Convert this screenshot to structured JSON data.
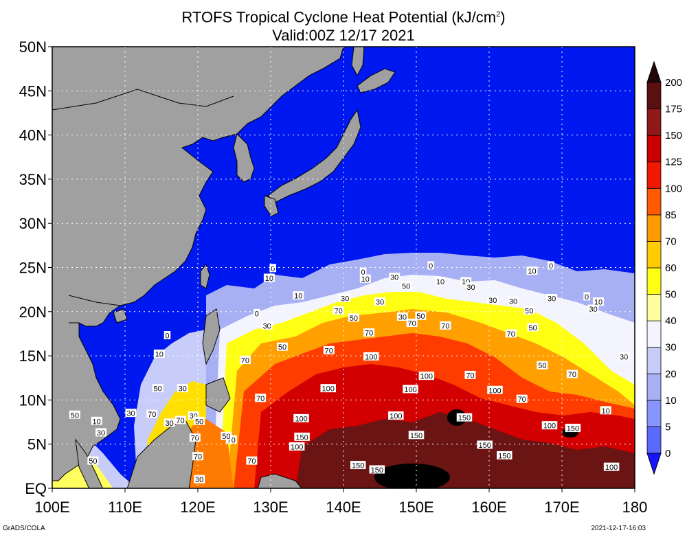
{
  "title": {
    "line1_prefix": "RTOFS Tropical Cyclone Heat Potential (kJ/cm",
    "line1_sup": "2",
    "line1_suffix": ")",
    "line2": "Valid:00Z 12/17 2021"
  },
  "footer": {
    "left": "GrADS/COLA",
    "right": "2021-12-17-16:03"
  },
  "map": {
    "lon_range": [
      100,
      180
    ],
    "lat_range": [
      0,
      50
    ],
    "x_ticks": [
      "100E",
      "110E",
      "120E",
      "130E",
      "140E",
      "150E",
      "160E",
      "170E",
      "180"
    ],
    "y_ticks": [
      "EQ",
      "5N",
      "10N",
      "15N",
      "20N",
      "25N",
      "30N",
      "35N",
      "40N",
      "45N",
      "50N"
    ],
    "gridlines": "dotted",
    "land_color": "#a0a0a0",
    "ocean_low_color": "#0018f0"
  },
  "colorbar": {
    "levels": [
      "0",
      "5",
      "10",
      "20",
      "30",
      "40",
      "50",
      "60",
      "70",
      "85",
      "100",
      "125",
      "150",
      "175",
      "200"
    ],
    "colors": [
      "#1414ff",
      "#5a6aff",
      "#8a96ff",
      "#a8b0f4",
      "#c8ccf8",
      "#f4f4ff",
      "#ffffa0",
      "#ffff14",
      "#ffcc00",
      "#ff9a00",
      "#ff5a00",
      "#f01800",
      "#c80000",
      "#901818",
      "#5a1010",
      "#200808"
    ]
  },
  "contour_labels": [
    {
      "text": "0",
      "lon": 130.3,
      "lat": 24.9
    },
    {
      "text": "10",
      "lon": 129.8,
      "lat": 23.8
    },
    {
      "text": "10",
      "lon": 133.8,
      "lat": 21.8
    },
    {
      "text": "0",
      "lon": 142.7,
      "lat": 24.5
    },
    {
      "text": "10",
      "lon": 143,
      "lat": 23.7
    },
    {
      "text": "30",
      "lon": 147,
      "lat": 23.9
    },
    {
      "text": "50",
      "lon": 148.6,
      "lat": 22.9
    },
    {
      "text": "0",
      "lon": 152,
      "lat": 25.2
    },
    {
      "text": "10",
      "lon": 153.3,
      "lat": 23.4
    },
    {
      "text": "10",
      "lon": 156.8,
      "lat": 23.4
    },
    {
      "text": "30",
      "lon": 157.5,
      "lat": 22.8
    },
    {
      "text": "10",
      "lon": 165.9,
      "lat": 24.6
    },
    {
      "text": "0",
      "lon": 168.5,
      "lat": 25.2
    },
    {
      "text": "30",
      "lon": 140.2,
      "lat": 21.5
    },
    {
      "text": "70",
      "lon": 139.3,
      "lat": 20.1
    },
    {
      "text": "50",
      "lon": 141.4,
      "lat": 19.3
    },
    {
      "text": "30",
      "lon": 145,
      "lat": 21.1
    },
    {
      "text": "50",
      "lon": 150.6,
      "lat": 19.5
    },
    {
      "text": "30",
      "lon": 148.1,
      "lat": 19.4
    },
    {
      "text": "70",
      "lon": 149.4,
      "lat": 18.7
    },
    {
      "text": "70",
      "lon": 154,
      "lat": 18.4
    },
    {
      "text": "30",
      "lon": 160.5,
      "lat": 21.3
    },
    {
      "text": "30",
      "lon": 163.3,
      "lat": 21.2
    },
    {
      "text": "50",
      "lon": 165.5,
      "lat": 20.1
    },
    {
      "text": "30",
      "lon": 168.6,
      "lat": 21.5
    },
    {
      "text": "0",
      "lon": 173.4,
      "lat": 21.7
    },
    {
      "text": "10",
      "lon": 175,
      "lat": 21.1
    },
    {
      "text": "30",
      "lon": 174.3,
      "lat": 20.3
    },
    {
      "text": "50",
      "lon": 166,
      "lat": 18.2
    },
    {
      "text": "70",
      "lon": 163,
      "lat": 17.5
    },
    {
      "text": "70",
      "lon": 143.5,
      "lat": 17.6
    },
    {
      "text": "100",
      "lon": 143.8,
      "lat": 14.9
    },
    {
      "text": "70",
      "lon": 138,
      "lat": 15.6
    },
    {
      "text": "50",
      "lon": 131.6,
      "lat": 16
    },
    {
      "text": "70",
      "lon": 126.5,
      "lat": 14.5
    },
    {
      "text": "30",
      "lon": 129.5,
      "lat": 18.4
    },
    {
      "text": "0",
      "lon": 128.1,
      "lat": 19.8
    },
    {
      "text": "0",
      "lon": 115.8,
      "lat": 17.3
    },
    {
      "text": "10",
      "lon": 114.7,
      "lat": 15.2
    },
    {
      "text": "50",
      "lon": 114.5,
      "lat": 11.3
    },
    {
      "text": "30",
      "lon": 117.9,
      "lat": 11.3
    },
    {
      "text": "70",
      "lon": 117.6,
      "lat": 7.7
    },
    {
      "text": "30",
      "lon": 119.4,
      "lat": 8.2
    },
    {
      "text": "50",
      "lon": 120.2,
      "lat": 7.6
    },
    {
      "text": "70",
      "lon": 128.6,
      "lat": 10.2
    },
    {
      "text": "100",
      "lon": 137.9,
      "lat": 11.3
    },
    {
      "text": "100",
      "lon": 149.2,
      "lat": 11.2
    },
    {
      "text": "100",
      "lon": 151.4,
      "lat": 12.7
    },
    {
      "text": "70",
      "lon": 157.4,
      "lat": 12.8
    },
    {
      "text": "100",
      "lon": 160.8,
      "lat": 11.1
    },
    {
      "text": "70",
      "lon": 164.5,
      "lat": 10.1
    },
    {
      "text": "50",
      "lon": 167.3,
      "lat": 13.9
    },
    {
      "text": "70",
      "lon": 171.4,
      "lat": 12.9
    },
    {
      "text": "30",
      "lon": 178.5,
      "lat": 14.9
    },
    {
      "text": "10",
      "lon": 176,
      "lat": 8.8
    },
    {
      "text": "100",
      "lon": 134.2,
      "lat": 7.9
    },
    {
      "text": "100",
      "lon": 147.2,
      "lat": 8.2
    },
    {
      "text": "150",
      "lon": 156.6,
      "lat": 8
    },
    {
      "text": "100",
      "lon": 168.3,
      "lat": 7.1
    },
    {
      "text": "150",
      "lon": 171.5,
      "lat": 6.8
    },
    {
      "text": "150",
      "lon": 134.3,
      "lat": 5.8
    },
    {
      "text": "100",
      "lon": 133.6,
      "lat": 4.7
    },
    {
      "text": "150",
      "lon": 150,
      "lat": 6
    },
    {
      "text": "150",
      "lon": 159.4,
      "lat": 4.9
    },
    {
      "text": "150",
      "lon": 162.1,
      "lat": 3.7
    },
    {
      "text": "70",
      "lon": 124.6,
      "lat": 5.5
    },
    {
      "text": "50",
      "lon": 123.9,
      "lat": 5.9
    },
    {
      "text": "70",
      "lon": 127.4,
      "lat": 3.1
    },
    {
      "text": "150",
      "lon": 142,
      "lat": 2.6
    },
    {
      "text": "150",
      "lon": 144.6,
      "lat": 2.1
    },
    {
      "text": "100",
      "lon": 176.8,
      "lat": 2.4
    },
    {
      "text": "10",
      "lon": 106.1,
      "lat": 7.6
    },
    {
      "text": "50",
      "lon": 103.1,
      "lat": 8.3
    },
    {
      "text": "30",
      "lon": 106.7,
      "lat": 6.3
    },
    {
      "text": "30",
      "lon": 110.8,
      "lat": 8.5
    },
    {
      "text": "70",
      "lon": 113.7,
      "lat": 8.4
    },
    {
      "text": "70",
      "lon": 119.6,
      "lat": 5.7
    },
    {
      "text": "50",
      "lon": 105.6,
      "lat": 3.1
    },
    {
      "text": "70",
      "lon": 120,
      "lat": 3.6
    },
    {
      "text": "30",
      "lon": 120.2,
      "lat": 1.0
    },
    {
      "text": "30",
      "lon": 116.1,
      "lat": 7.4
    }
  ]
}
